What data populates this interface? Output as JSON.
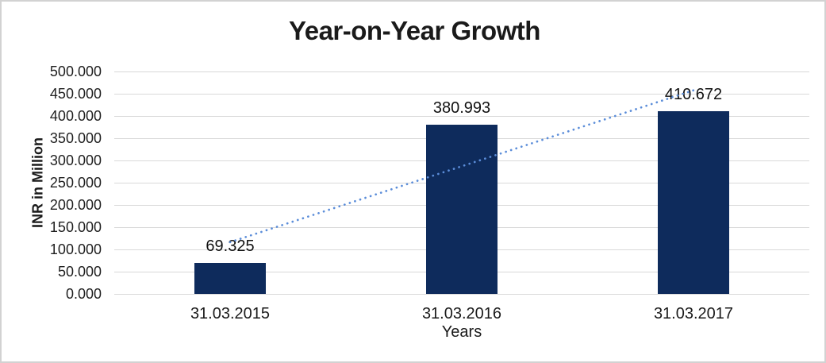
{
  "frame": {
    "background_color": "#ffffff",
    "border_color": "#d2d2d2"
  },
  "chart_data": {
    "type": "bar",
    "title": "Year-on-Year Growth",
    "xlabel": "Years",
    "ylabel": "INR in Million",
    "categories": [
      "31.03.2015",
      "31.03.2016",
      "31.03.2017"
    ],
    "values": [
      69.325,
      380.993,
      410.672
    ],
    "value_labels": [
      "69.325",
      "380.993",
      "410.672"
    ],
    "ylim": [
      0,
      500
    ],
    "ytick_step": 50,
    "ytick_labels": [
      "0.000",
      "50.000",
      "100.000",
      "150.000",
      "200.000",
      "250.000",
      "300.000",
      "350.000",
      "400.000",
      "450.000",
      "500.000"
    ],
    "grid": true,
    "legend": "none",
    "bar_color": "#0e2b5c",
    "gridline_color": "#d9d9d9",
    "trendline": {
      "type": "linear",
      "style": "dotted",
      "color": "#5b8dd9"
    }
  }
}
